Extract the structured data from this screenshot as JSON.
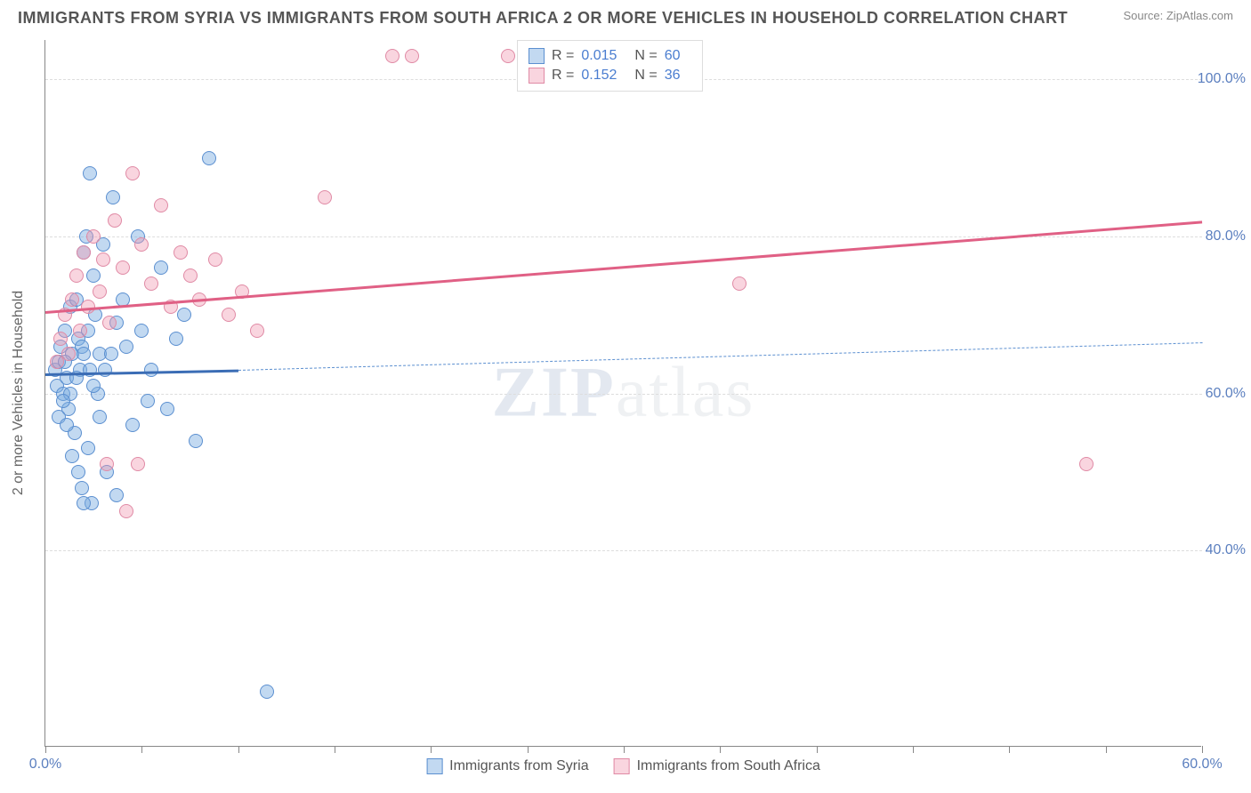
{
  "header": {
    "title": "IMMIGRANTS FROM SYRIA VS IMMIGRANTS FROM SOUTH AFRICA 2 OR MORE VEHICLES IN HOUSEHOLD CORRELATION CHART",
    "source_label": "Source: ",
    "source_name": "ZipAtlas.com"
  },
  "watermark": {
    "part1": "ZIP",
    "part2": "atlas"
  },
  "chart": {
    "type": "scatter",
    "y_axis_title": "2 or more Vehicles in Household",
    "background_color": "#ffffff",
    "grid_color": "#dddddd",
    "axis_color": "#888888",
    "tick_label_color": "#5b7fbf",
    "xlim": [
      0,
      60
    ],
    "ylim": [
      15,
      105
    ],
    "x_ticks": [
      0,
      20,
      40,
      60
    ],
    "x_minor_ticks": [
      5,
      10,
      15,
      25,
      30,
      35,
      45,
      50,
      55
    ],
    "x_tick_labels": [
      "0.0%",
      "",
      "",
      "60.0%"
    ],
    "y_ticks": [
      40,
      60,
      80,
      100
    ],
    "y_tick_labels": [
      "40.0%",
      "60.0%",
      "80.0%",
      "100.0%"
    ],
    "series": [
      {
        "name": "Immigrants from Syria",
        "fill_color": "rgba(120,170,225,0.45)",
        "stroke_color": "#5b8fd0",
        "trend_color": "#3b6db5",
        "trend_dash_color": "#5b8fd0",
        "R": "0.015",
        "N": "60",
        "trend": {
          "x1": 0,
          "y1": 62.5,
          "x2": 10,
          "y2": 63.0,
          "dash_x2": 60,
          "dash_y2": 66.5
        },
        "points": [
          [
            0.5,
            63
          ],
          [
            0.6,
            61
          ],
          [
            0.7,
            64
          ],
          [
            0.8,
            66
          ],
          [
            0.9,
            60
          ],
          [
            1.0,
            68
          ],
          [
            1.1,
            62
          ],
          [
            1.2,
            58
          ],
          [
            1.3,
            71
          ],
          [
            1.4,
            65
          ],
          [
            1.5,
            55
          ],
          [
            1.6,
            72
          ],
          [
            1.7,
            67
          ],
          [
            1.8,
            63
          ],
          [
            1.9,
            48
          ],
          [
            2.0,
            78
          ],
          [
            2.1,
            80
          ],
          [
            2.2,
            53
          ],
          [
            2.3,
            88
          ],
          [
            2.4,
            46
          ],
          [
            2.5,
            75
          ],
          [
            2.6,
            70
          ],
          [
            2.7,
            60
          ],
          [
            2.8,
            65
          ],
          [
            3.0,
            79
          ],
          [
            3.2,
            50
          ],
          [
            3.5,
            85
          ],
          [
            3.7,
            47
          ],
          [
            4.0,
            72
          ],
          [
            4.2,
            66
          ],
          [
            4.5,
            56
          ],
          [
            4.8,
            80
          ],
          [
            5.0,
            68
          ],
          [
            5.3,
            59
          ],
          [
            5.5,
            63
          ],
          [
            6.0,
            76
          ],
          [
            6.3,
            58
          ],
          [
            6.8,
            67
          ],
          [
            7.2,
            70
          ],
          [
            7.8,
            54
          ],
          [
            1.0,
            64
          ],
          [
            1.3,
            60
          ],
          [
            1.6,
            62
          ],
          [
            1.9,
            66
          ],
          [
            2.2,
            68
          ],
          [
            2.5,
            61
          ],
          [
            2.8,
            57
          ],
          [
            3.1,
            63
          ],
          [
            3.4,
            65
          ],
          [
            3.7,
            69
          ],
          [
            0.7,
            57
          ],
          [
            0.9,
            59
          ],
          [
            1.1,
            56
          ],
          [
            1.4,
            52
          ],
          [
            1.7,
            50
          ],
          [
            2.0,
            46
          ],
          [
            8.5,
            90
          ],
          [
            2.0,
            65
          ],
          [
            2.3,
            63
          ],
          [
            11.5,
            22
          ]
        ]
      },
      {
        "name": "Immigrants from South Africa",
        "fill_color": "rgba(240,150,175,0.40)",
        "stroke_color": "#e08aa5",
        "trend_color": "#e06085",
        "R": "0.152",
        "N": "36",
        "trend": {
          "x1": 0,
          "y1": 70.5,
          "x2": 60,
          "y2": 82.0
        },
        "points": [
          [
            0.6,
            64
          ],
          [
            0.8,
            67
          ],
          [
            1.0,
            70
          ],
          [
            1.2,
            65
          ],
          [
            1.4,
            72
          ],
          [
            1.6,
            75
          ],
          [
            1.8,
            68
          ],
          [
            2.0,
            78
          ],
          [
            2.2,
            71
          ],
          [
            2.5,
            80
          ],
          [
            2.8,
            73
          ],
          [
            3.0,
            77
          ],
          [
            3.3,
            69
          ],
          [
            3.6,
            82
          ],
          [
            4.0,
            76
          ],
          [
            4.5,
            88
          ],
          [
            5.0,
            79
          ],
          [
            5.5,
            74
          ],
          [
            6.0,
            84
          ],
          [
            6.5,
            71
          ],
          [
            7.0,
            78
          ],
          [
            7.5,
            75
          ],
          [
            8.0,
            72
          ],
          [
            8.8,
            77
          ],
          [
            9.5,
            70
          ],
          [
            10.2,
            73
          ],
          [
            11.0,
            68
          ],
          [
            3.2,
            51
          ],
          [
            4.8,
            51
          ],
          [
            4.2,
            45
          ],
          [
            14.5,
            85
          ],
          [
            18.0,
            103
          ],
          [
            19.0,
            103
          ],
          [
            24.0,
            103
          ],
          [
            36.0,
            74
          ],
          [
            54.0,
            51
          ]
        ]
      }
    ]
  },
  "stats_legend": {
    "R_label": "R =",
    "N_label": "N =",
    "value_color": "#4a7dd0"
  },
  "bottom_legend": {
    "items": [
      "Immigrants from Syria",
      "Immigrants from South Africa"
    ]
  }
}
